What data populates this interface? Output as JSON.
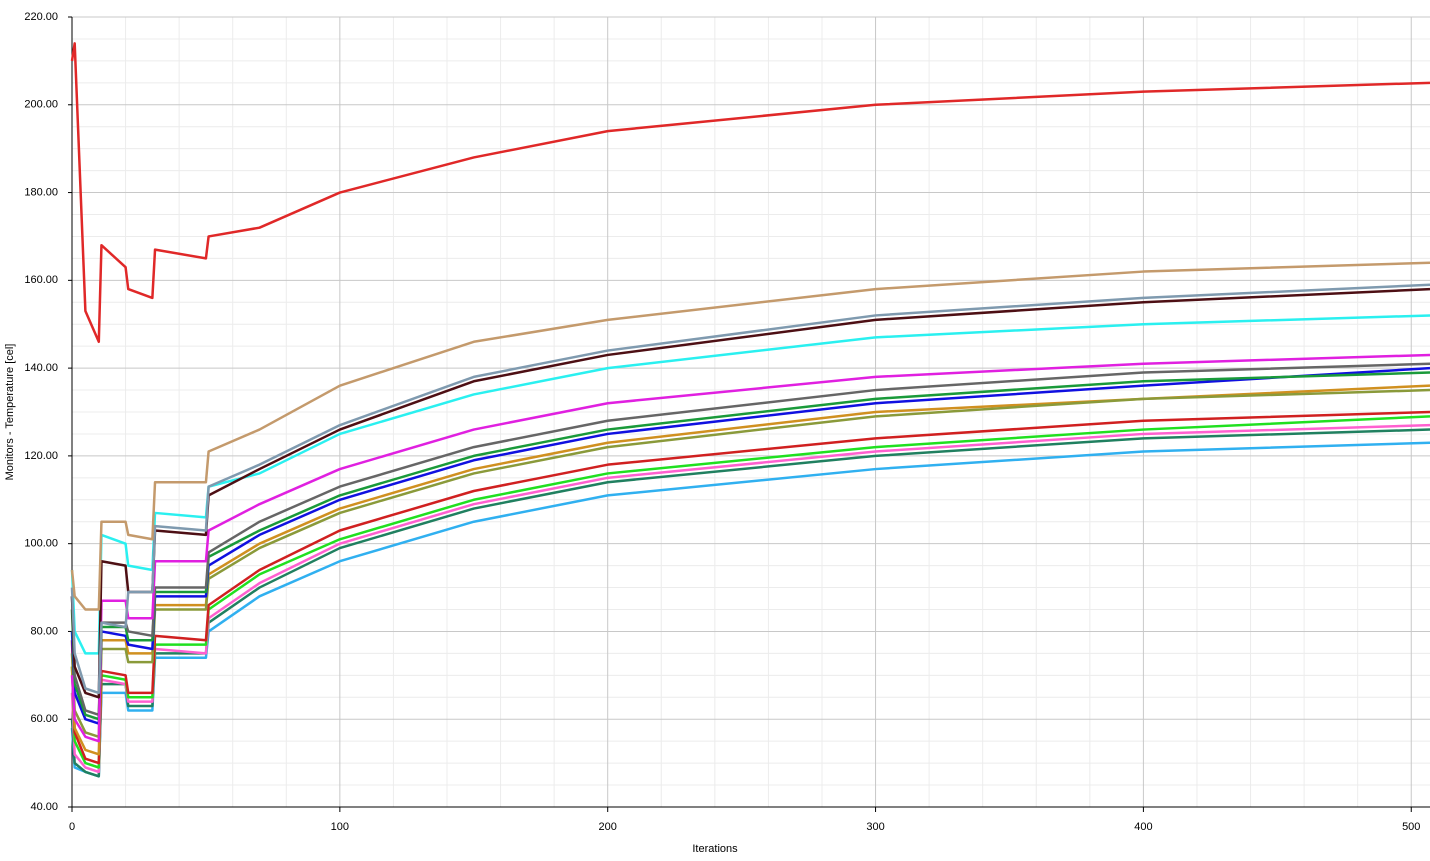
{
  "chart_data": {
    "type": "line",
    "xlabel": "Iterations",
    "ylabel": "Monitors - Temperature [cel]",
    "x": [
      0,
      1,
      5,
      10,
      11,
      20,
      21,
      30,
      31,
      50,
      51,
      70,
      100,
      150,
      200,
      300,
      400,
      507
    ],
    "xlim": [
      0,
      507
    ],
    "xticks": [
      0,
      100,
      200,
      300,
      400,
      500
    ],
    "ylim": [
      40,
      220
    ],
    "yticks": [
      {
        "value": 40,
        "label": "40.00"
      },
      {
        "value": 60,
        "label": "60.00"
      },
      {
        "value": 80,
        "label": "80.00"
      },
      {
        "value": 100,
        "label": "100.00"
      },
      {
        "value": 120,
        "label": "120.00"
      },
      {
        "value": 140,
        "label": "140.00"
      },
      {
        "value": 160,
        "label": "160.00"
      },
      {
        "value": 180,
        "label": "180.00"
      },
      {
        "value": 200,
        "label": "200.00"
      },
      {
        "value": 220,
        "label": "220.00"
      }
    ],
    "grid": true,
    "series": [
      {
        "color": "#e02828",
        "values": [
          210,
          214,
          153,
          146,
          168,
          163,
          158,
          156,
          167,
          165,
          170,
          172,
          180,
          188,
          194,
          200,
          203,
          205
        ]
      },
      {
        "color": "#c49a6c",
        "values": [
          94,
          88,
          85,
          85,
          105,
          105,
          102,
          101,
          114,
          114,
          121,
          126,
          136,
          146,
          151,
          158,
          162,
          164
        ]
      },
      {
        "color": "#7f9aaf",
        "values": [
          90,
          75,
          67,
          66,
          82,
          81,
          89,
          89,
          104,
          103,
          113,
          118,
          127,
          138,
          144,
          152,
          156,
          159
        ]
      },
      {
        "color": "#4d0f14",
        "values": [
          88,
          72,
          66,
          65,
          96,
          95,
          89,
          89,
          103,
          102,
          111,
          117,
          126,
          137,
          143,
          151,
          155,
          158
        ]
      },
      {
        "color": "#2af0f0",
        "values": [
          94,
          80,
          75,
          75,
          102,
          100,
          95,
          94,
          107,
          106,
          113,
          116,
          125,
          134,
          140,
          147,
          150,
          152
        ]
      },
      {
        "color": "#e020e0",
        "values": [
          70,
          60,
          56,
          55,
          87,
          87,
          83,
          83,
          96,
          96,
          103,
          109,
          117,
          126,
          132,
          138,
          141,
          143
        ]
      },
      {
        "color": "#666666",
        "values": [
          88,
          70,
          62,
          61,
          82,
          82,
          80,
          79,
          90,
          90,
          98,
          105,
          113,
          122,
          128,
          135,
          139,
          141
        ]
      },
      {
        "color": "#1a9a3a",
        "values": [
          85,
          68,
          61,
          60,
          81,
          81,
          78,
          78,
          89,
          89,
          97,
          103,
          111,
          120,
          126,
          133,
          137,
          139
        ]
      },
      {
        "color": "#1010e0",
        "values": [
          80,
          66,
          60,
          59,
          80,
          79,
          77,
          76,
          88,
          88,
          95,
          102,
          110,
          119,
          125,
          132,
          136,
          140
        ]
      },
      {
        "color": "#8a9a3a",
        "values": [
          75,
          62,
          57,
          56,
          76,
          76,
          73,
          73,
          85,
          85,
          92,
          99,
          107,
          116,
          122,
          129,
          133,
          135
        ]
      },
      {
        "color": "#d09020",
        "values": [
          72,
          58,
          53,
          52,
          78,
          78,
          75,
          75,
          86,
          86,
          93,
          100,
          108,
          117,
          123,
          130,
          133,
          136
        ]
      },
      {
        "color": "#d02020",
        "values": [
          78,
          57,
          51,
          50,
          71,
          70,
          66,
          66,
          79,
          78,
          86,
          94,
          103,
          112,
          118,
          124,
          128,
          130
        ]
      },
      {
        "color": "#20e020",
        "values": [
          72,
          55,
          50,
          49,
          70,
          69,
          65,
          65,
          77,
          77,
          85,
          93,
          101,
          110,
          116,
          122,
          126,
          129
        ]
      },
      {
        "color": "#ff60d0",
        "values": [
          66,
          52,
          49,
          48,
          69,
          68,
          64,
          64,
          76,
          75,
          83,
          91,
          100,
          109,
          115,
          121,
          125,
          127
        ]
      },
      {
        "color": "#208060",
        "values": [
          60,
          50,
          48,
          47,
          68,
          68,
          63,
          63,
          75,
          75,
          82,
          90,
          99,
          108,
          114,
          120,
          124,
          126
        ]
      },
      {
        "color": "#30b0f0",
        "values": [
          58,
          49,
          48,
          47,
          66,
          66,
          62,
          62,
          74,
          74,
          80,
          88,
          96,
          105,
          111,
          117,
          121,
          123
        ]
      }
    ]
  }
}
